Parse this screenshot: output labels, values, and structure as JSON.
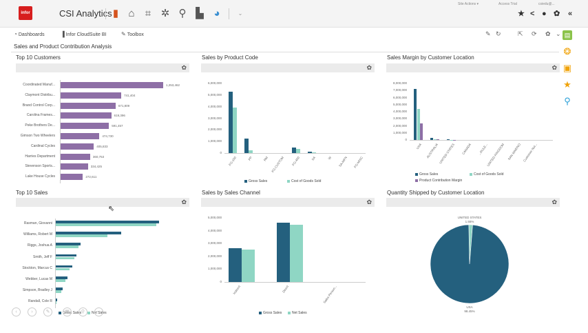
{
  "app": {
    "logo": "infor",
    "title": "CSI Analytics"
  },
  "header_utils": {
    "site_actions": "Site Actions ▾",
    "user_links": "Access  Trial",
    "user": "csiedu@..."
  },
  "nav": {
    "dashboards": "Dashboards",
    "cloudsuite": "Infor CloudSuite BI",
    "toolbox": "Toolbox"
  },
  "page_title": "Sales and Product Contribution Analysis",
  "panels": {
    "top_customers": {
      "title": "Top 10 Customers"
    },
    "sales_by_product": {
      "title": "Sales by Product Code"
    },
    "margin_by_location": {
      "title": "Sales Margin by Customer Location"
    },
    "top_sales": {
      "title": "Top 10 Sales"
    },
    "sales_by_channel": {
      "title": "Sales by Sales Channel"
    },
    "qty_by_location": {
      "title": "Quantity Shipped by Customer Location"
    }
  },
  "colors": {
    "purple": "#8e6fa6",
    "navy": "#24607e",
    "mint": "#8fd6c4",
    "gray_bar": "#ebebeb"
  },
  "chart_data": [
    {
      "type": "bar",
      "orientation": "horizontal",
      "title": "Top 10 Customers",
      "categories": [
        "Coordinated Manuf...",
        "Claymont Distribu...",
        "Brand Control Corp...",
        "Carolina Frames...",
        "Peke Brothers De...",
        "Gimson Two Wheelers",
        "Cardinal Cycles",
        "Harries Department",
        "Stevenson Sports...",
        "Lake House Cycles"
      ],
      "values": [
        1253462,
        741404,
        671809,
        619396,
        591457,
        474730,
        405833,
        360753,
        334425,
        272611
      ],
      "value_labels": [
        "1,253,462",
        "741,404",
        "671,809",
        "619,396",
        "591,457",
        "474,730",
        "405,833",
        "360,753",
        "334,425",
        "272,611"
      ]
    },
    {
      "type": "bar",
      "title": "Sales by Product Code",
      "categories": [
        "FG-100",
        "PP",
        "RM",
        "FG-CUSTOM",
        "FG-400",
        "SA",
        "W",
        "SA-MFN",
        "FG-MISC"
      ],
      "yticks": [
        "6,000,000",
        "5,000,000",
        "4,000,000",
        "3,000,000",
        "2,000,000",
        "1,000,000",
        "0"
      ],
      "ylim": [
        0,
        6000000
      ],
      "series": [
        {
          "name": "Gross Sales",
          "values": [
            5300000,
            1250000,
            0,
            0,
            500000,
            100000,
            0,
            0,
            0
          ]
        },
        {
          "name": "Cost of Goods Sold",
          "values": [
            3900000,
            250000,
            0,
            0,
            350000,
            60000,
            0,
            0,
            0
          ]
        }
      ]
    },
    {
      "type": "bar",
      "title": "Sales Margin by Customer Location",
      "categories": [
        "USA",
        "AUSTRALIA",
        "UNITED STATES",
        "CANADA",
        "...RULE...",
        "UNITED KINGDOM",
        "SAN MARINO",
        "Customer Not..."
      ],
      "yticks": [
        "8,000,000",
        "7,000,000",
        "6,000,000",
        "5,000,000",
        "4,000,000",
        "3,000,000",
        "2,000,000",
        "1,000,000",
        "0"
      ],
      "ylim": [
        0,
        8000000
      ],
      "series": [
        {
          "name": "Gross Sales",
          "values": [
            7200000,
            250000,
            50000,
            0,
            0,
            0,
            0,
            0
          ]
        },
        {
          "name": "Cost of Goods Sold",
          "values": [
            4400000,
            120000,
            30000,
            0,
            0,
            0,
            0,
            0
          ]
        },
        {
          "name": "Product Contribution Margin",
          "values": [
            2300000,
            100000,
            20000,
            0,
            0,
            0,
            0,
            0
          ]
        }
      ]
    },
    {
      "type": "bar",
      "orientation": "horizontal",
      "title": "Top 10 Sales",
      "categories": [
        "Rasman, Giovanni",
        "Williams, Robert M",
        "Riggs, Joshua A",
        "Smith, Jeff F",
        "Stockton, Marcus C",
        "Webber, Lucas M",
        "Simpson, Bradley J",
        "Randall, Cole R"
      ],
      "series": [
        {
          "name": "Gross Sales",
          "values": [
            150,
            95,
            36,
            30,
            24,
            17,
            10,
            2
          ]
        },
        {
          "name": "Net Sales",
          "values": [
            146,
            75,
            33,
            27,
            20,
            14,
            8,
            1
          ]
        }
      ]
    },
    {
      "type": "bar",
      "title": "Sales by Sales Channel",
      "categories": [
        "Indirect",
        "Direct",
        "Sales Person..."
      ],
      "yticks": [
        "5,000,000",
        "4,000,000",
        "3,000,000",
        "2,000,000",
        "1,000,000",
        "0"
      ],
      "ylim": [
        0,
        5000000
      ],
      "series": [
        {
          "name": "Gross Sales",
          "values": [
            2650000,
            4650000,
            0
          ]
        },
        {
          "name": "Net Sales",
          "values": [
            2550000,
            4450000,
            0
          ]
        }
      ]
    },
    {
      "type": "pie",
      "title": "Quantity Shipped by Customer Location",
      "slices": [
        {
          "name": "USA",
          "value": 98.45,
          "label": "USA",
          "pct": "98.45%"
        },
        {
          "name": "UNITED STATES",
          "value": 1.55,
          "label": "UNITED STATES",
          "pct": "1.55%"
        }
      ]
    }
  ],
  "legend": {
    "gross": "Gross Sales",
    "cogs": "Cost of Goods Sold",
    "pcm": "Product Contribution Margin",
    "net": "Net Sales"
  }
}
